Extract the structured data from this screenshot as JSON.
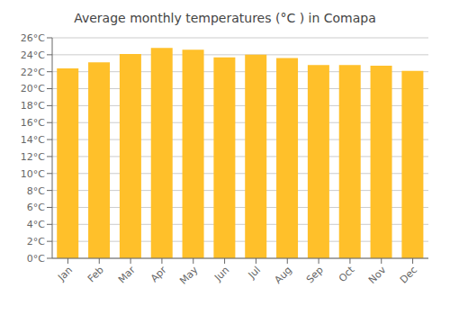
{
  "chart_data": {
    "type": "bar",
    "title": "Average monthly temperatures (°C ) in Comapa",
    "categories": [
      "Jan",
      "Feb",
      "Mar",
      "Apr",
      "May",
      "Jun",
      "Jul",
      "Aug",
      "Sep",
      "Oct",
      "Nov",
      "Dec"
    ],
    "values": [
      22.4,
      23.1,
      24.1,
      24.8,
      24.6,
      23.7,
      24.0,
      23.6,
      22.8,
      22.8,
      22.7,
      22.1
    ],
    "color": "#FFC02A",
    "ylim": [
      0,
      26
    ],
    "yticks": [
      {
        "value": 0,
        "label": "0°C"
      },
      {
        "value": 2,
        "label": "2°C"
      },
      {
        "value": 4,
        "label": "4°C"
      },
      {
        "value": 6,
        "label": "6°C"
      },
      {
        "value": 8,
        "label": "8°C"
      },
      {
        "value": 10,
        "label": "10°C"
      },
      {
        "value": 12,
        "label": "12°C"
      },
      {
        "value": 14,
        "label": "14°C"
      },
      {
        "value": 16,
        "label": "16°C"
      },
      {
        "value": 18,
        "label": "18°C"
      },
      {
        "value": 20,
        "label": "20°C"
      },
      {
        "value": 22,
        "label": "22°C"
      },
      {
        "value": 24,
        "label": "24°C"
      },
      {
        "value": 26,
        "label": "26°C"
      }
    ],
    "grid": true
  }
}
